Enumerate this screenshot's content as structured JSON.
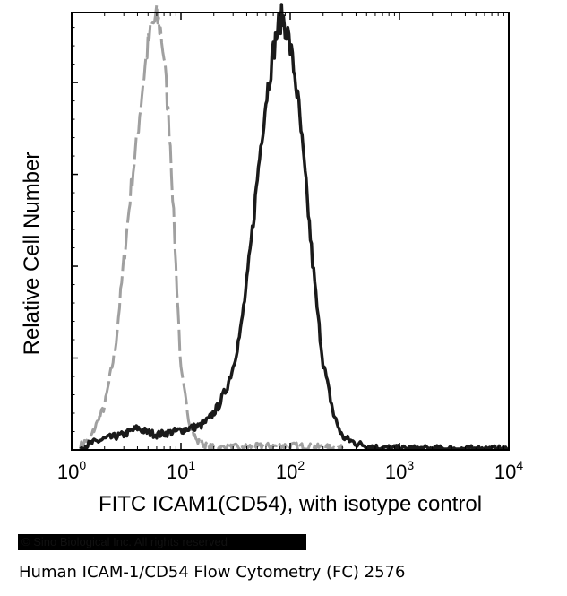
{
  "chart_data": {
    "type": "line",
    "title": "",
    "xlabel": "FITC  ICAM1(CD54), with isotype control",
    "ylabel": "Relative Cell Number",
    "xscale": "log",
    "xlim": [
      1,
      10000
    ],
    "ylim": [
      0,
      100
    ],
    "x_ticks": [
      {
        "base": "10",
        "exp": "0",
        "value": 1
      },
      {
        "base": "10",
        "exp": "1",
        "value": 10
      },
      {
        "base": "10",
        "exp": "2",
        "value": 100
      },
      {
        "base": "10",
        "exp": "3",
        "value": 1000
      },
      {
        "base": "10",
        "exp": "4",
        "value": 10000
      }
    ],
    "y_ticks": [
      0,
      21,
      42,
      63,
      84
    ],
    "grid": false,
    "legend": "none",
    "series": [
      {
        "style": "dashed",
        "color": "#a0a0a0",
        "x": [
          1.2,
          1.5,
          2,
          2.5,
          3,
          3.5,
          4,
          4.5,
          5,
          5.5,
          6,
          6.5,
          7,
          8,
          9,
          10,
          12,
          14,
          17,
          20,
          30,
          50,
          100,
          200,
          300
        ],
        "y": [
          1,
          3,
          10,
          23,
          43,
          60,
          72,
          84,
          93,
          97,
          99,
          96,
          90,
          70,
          42,
          18,
          6,
          2,
          1,
          0.5,
          0.6,
          0.8,
          1,
          0.6,
          0.3
        ]
      },
      {
        "style": "solid",
        "color": "#1a1a1a",
        "x": [
          1.2,
          1.5,
          2,
          3,
          4,
          5,
          6,
          8,
          10,
          12,
          15,
          18,
          22,
          26,
          30,
          35,
          40,
          45,
          50,
          55,
          60,
          65,
          70,
          75,
          80,
          85,
          90,
          95,
          100,
          110,
          120,
          140,
          160,
          180,
          200,
          250,
          300,
          400,
          600,
          1000,
          10000
        ],
        "y": [
          0.5,
          1.5,
          2.5,
          3.5,
          5,
          4,
          3.5,
          4,
          4.5,
          5,
          5.5,
          7,
          10,
          14,
          19,
          27,
          38,
          50,
          62,
          72,
          80,
          86,
          91,
          95,
          98,
          99,
          97,
          95,
          92,
          86,
          78,
          60,
          43,
          30,
          20,
          8,
          3,
          1.5,
          0.6,
          0.3,
          0.2
        ]
      }
    ]
  },
  "copyright": "© Sino Biological Inc. All rights reserved",
  "caption": "Human ICAM-1/CD54 Flow Cytometry (FC) 2576"
}
